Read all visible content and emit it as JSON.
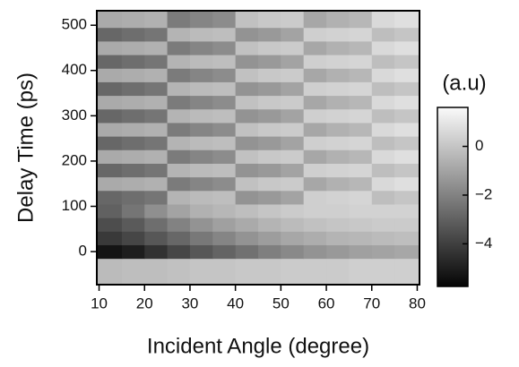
{
  "chart_data": {
    "type": "heatmap",
    "xlabel": "Incident Angle (degree)",
    "ylabel": "Delay Time (ps)",
    "colorbar_label": "(a.u)",
    "colormap": "gray",
    "xlim": [
      9.5,
      80.5
    ],
    "ylim": [
      -73,
      532
    ],
    "xticks": [
      10,
      20,
      30,
      40,
      50,
      60,
      70,
      80
    ],
    "yticks": [
      0,
      100,
      200,
      300,
      400,
      500
    ],
    "clim": [
      -5.75,
      1.6
    ],
    "cticks": [
      {
        "value": 0,
        "label": "0"
      },
      {
        "value": -2,
        "label": "−2"
      },
      {
        "value": -4,
        "label": "−4"
      }
    ],
    "x_edges": [
      9.5,
      15,
      20,
      25,
      30,
      35,
      40,
      45,
      50,
      55,
      60,
      65,
      70,
      75,
      80.5
    ],
    "y_edges": [
      -73,
      -15,
      15,
      45,
      75,
      105,
      135,
      165,
      195,
      225,
      255,
      285,
      315,
      345,
      375,
      405,
      435,
      465,
      495,
      532
    ],
    "z": [
      [
        -0.3,
        -0.2,
        -0.2,
        -0.1,
        0,
        0,
        0.1,
        0.1,
        0.2,
        0.2,
        0.2,
        0.3,
        0.3,
        0.3
      ],
      [
        -5.3,
        -5.0,
        -4.4,
        -3.8,
        -3.3,
        -2.9,
        -2.5,
        -2.1,
        -1.8,
        -1.5,
        -1.3,
        -1.1,
        -1.0,
        -0.9
      ],
      [
        -4.2,
        -3.8,
        -3.3,
        -2.8,
        -2.3,
        -1.9,
        -1.5,
        -1.2,
        -0.9,
        -0.7,
        -0.5,
        -0.4,
        -0.3,
        -0.2
      ],
      [
        -3.6,
        -3.2,
        -2.6,
        -2.0,
        -1.5,
        -1.1,
        -0.8,
        -0.5,
        -0.3,
        -0.1,
        0,
        0.1,
        0.2,
        0.2
      ],
      [
        -3.0,
        -2.4,
        -1.6,
        -1.0,
        -0.6,
        -0.4,
        -0.2,
        0,
        0.2,
        0.3,
        0.3,
        0.4,
        0.4,
        0.4
      ],
      [
        -2.8,
        -2.6,
        -2.4,
        -0.5,
        -0.3,
        -0.2,
        -1.5,
        -1.3,
        -1.0,
        0.3,
        0.4,
        0.5,
        -0.2,
        0.0
      ],
      [
        -0.8,
        -0.7,
        -0.6,
        -2.2,
        -1.9,
        -1.7,
        -0.1,
        0.1,
        0.2,
        -0.9,
        -0.6,
        -0.4,
        0.6,
        0.8
      ],
      [
        -2.8,
        -2.6,
        -2.4,
        -0.5,
        -0.3,
        -0.2,
        -1.5,
        -1.3,
        -1.0,
        0.3,
        0.4,
        0.5,
        -0.2,
        0.0
      ],
      [
        -0.8,
        -0.7,
        -0.6,
        -2.2,
        -1.9,
        -1.7,
        -0.1,
        0.1,
        0.2,
        -0.9,
        -0.6,
        -0.4,
        0.6,
        0.8
      ],
      [
        -2.8,
        -2.6,
        -2.4,
        -0.5,
        -0.3,
        -0.2,
        -1.5,
        -1.3,
        -1.0,
        0.3,
        0.4,
        0.5,
        -0.2,
        0.0
      ],
      [
        -0.8,
        -0.7,
        -0.6,
        -2.2,
        -1.9,
        -1.7,
        -0.1,
        0.1,
        0.2,
        -0.9,
        -0.6,
        -0.4,
        0.6,
        0.8
      ],
      [
        -2.8,
        -2.6,
        -2.4,
        -0.5,
        -0.3,
        -0.2,
        -1.5,
        -1.3,
        -1.0,
        0.3,
        0.4,
        0.5,
        -0.2,
        0.0
      ],
      [
        -0.8,
        -0.7,
        -0.6,
        -2.2,
        -1.9,
        -1.7,
        -0.1,
        0.1,
        0.2,
        -0.9,
        -0.6,
        -0.4,
        0.6,
        0.8
      ],
      [
        -2.8,
        -2.6,
        -2.4,
        -0.5,
        -0.3,
        -0.2,
        -1.5,
        -1.3,
        -1.0,
        0.3,
        0.4,
        0.5,
        -0.2,
        0.0
      ],
      [
        -0.8,
        -0.7,
        -0.6,
        -2.2,
        -1.9,
        -1.7,
        -0.1,
        0.1,
        0.2,
        -0.9,
        -0.6,
        -0.4,
        0.6,
        0.8
      ],
      [
        -2.8,
        -2.6,
        -2.4,
        -0.5,
        -0.3,
        -0.2,
        -1.5,
        -1.3,
        -1.0,
        0.3,
        0.4,
        0.5,
        -0.2,
        0.0
      ],
      [
        -0.8,
        -0.7,
        -0.6,
        -2.2,
        -1.9,
        -1.7,
        -0.1,
        0.1,
        0.2,
        -0.9,
        -0.6,
        -0.4,
        0.6,
        0.8
      ],
      [
        -2.8,
        -2.6,
        -2.4,
        -0.5,
        -0.3,
        -0.2,
        -1.5,
        -1.3,
        -1.0,
        0.3,
        0.4,
        0.5,
        -0.2,
        0.0
      ],
      [
        -0.8,
        -0.7,
        -0.6,
        -2.2,
        -1.9,
        -1.7,
        -0.1,
        0.1,
        0.2,
        -0.9,
        -0.6,
        -0.4,
        0.6,
        0.8
      ]
    ]
  }
}
